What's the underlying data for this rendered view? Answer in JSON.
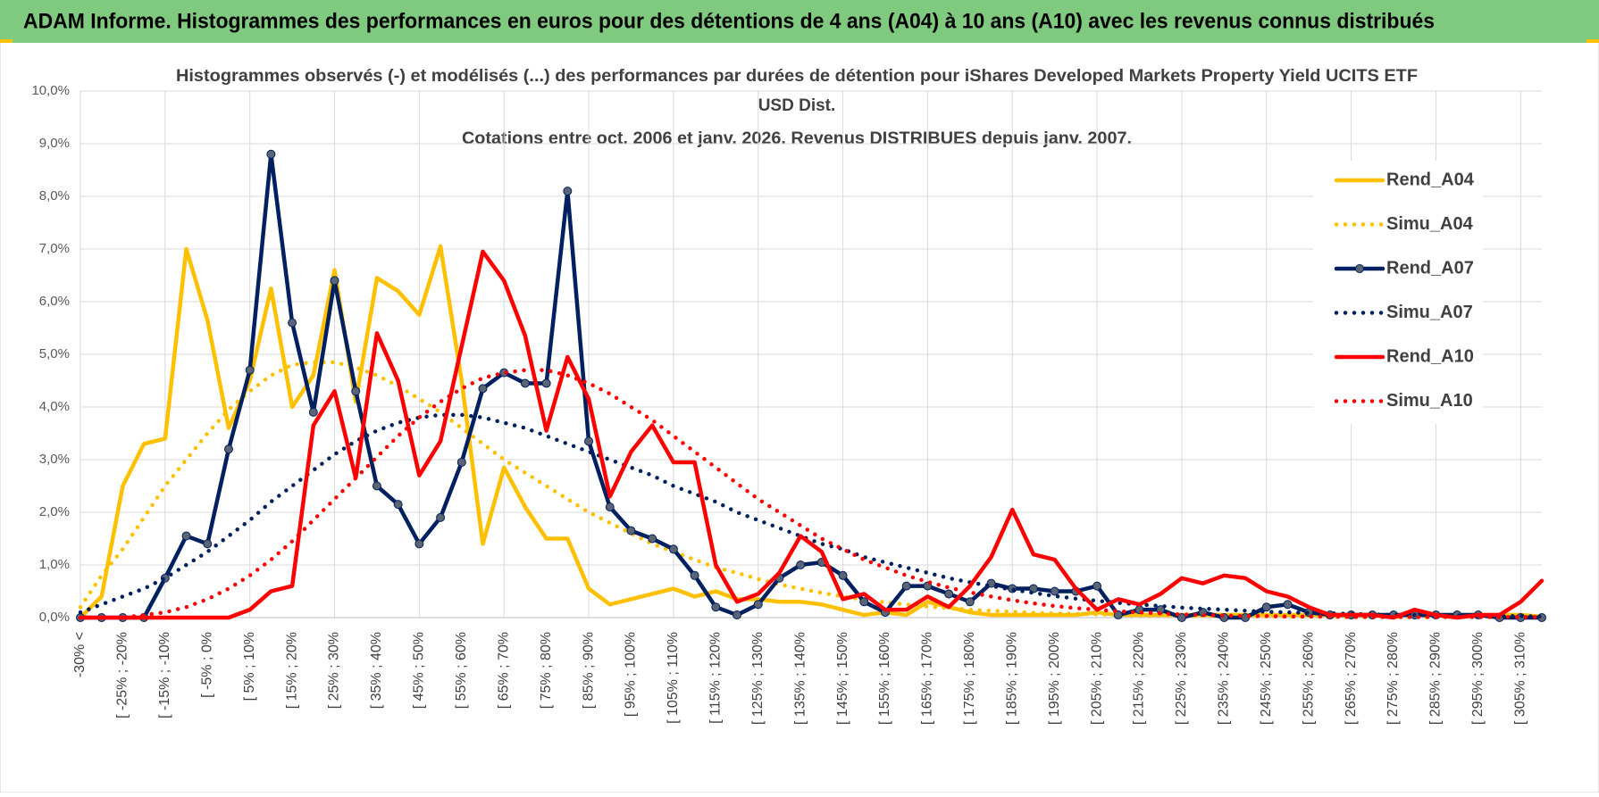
{
  "header": {
    "title": "ADAM Informe. Histogrammes des performances en euros pour des détentions de 4 ans (A04) à 10 ans (A10) avec les revenus connus distribués"
  },
  "chart_data": {
    "type": "line",
    "title": [
      "Histogrammes observés (-) et modélisés (...) des performances par durées de détention pour iShares Developed Markets Property Yield UCITS ETF",
      "USD Dist."
    ],
    "subtitle": "Cotations entre oct. 2006 et janv. 2026.  Revenus DISTRIBUES depuis janv. 2007.",
    "categories": [
      "-30% <",
      null,
      "[ -25% ; -20%",
      null,
      "[ -15% ; -10%",
      null,
      "[ -5% ; 0%",
      null,
      "[ 5% ; 10%",
      null,
      "[ 15% ; 20%",
      null,
      "[ 25% ; 30%",
      null,
      "[ 35% ; 40%",
      null,
      "[ 45% ; 50%",
      null,
      "[ 55% ; 60%",
      null,
      "[ 65% ; 70%",
      null,
      "[ 75% ; 80%",
      null,
      "[ 85% ; 90%",
      null,
      "[ 95% ; 100%",
      null,
      "[ 105% ; 110%",
      null,
      "[ 115% ; 120%",
      null,
      "[ 125% ; 130%",
      null,
      "[ 135% ; 140%",
      null,
      "[ 145% ; 150%",
      null,
      "[ 155% ; 160%",
      null,
      "[ 165% ; 170%",
      null,
      "[ 175% ; 180%",
      null,
      "[ 185% ; 190%",
      null,
      "[ 195% ; 200%",
      null,
      "[ 205% ; 210%",
      null,
      "[ 215% ; 220%",
      null,
      "[ 225% ; 230%",
      null,
      "[ 235% ; 240%",
      null,
      "[ 245% ; 250%",
      null,
      "[ 255% ; 260%",
      null,
      "[ 265% ; 270%",
      null,
      "[ 275% ; 280%",
      null,
      "[ 285% ; 290%",
      null,
      "[ 295% ; 300%",
      null,
      "[ 305% ; 310%",
      null
    ],
    "series": [
      {
        "name": "Rend_A04",
        "color": "#ffc000",
        "style": "solid",
        "marker": false,
        "values": [
          0,
          0.4,
          2.5,
          3.3,
          3.4,
          7.0,
          5.65,
          3.6,
          4.5,
          6.25,
          4.0,
          4.6,
          6.6,
          4.1,
          6.45,
          6.2,
          5.75,
          7.05,
          4.5,
          1.4,
          2.85,
          2.1,
          1.5,
          1.5,
          0.55,
          0.25,
          0.35,
          0.45,
          0.55,
          0.4,
          0.5,
          0.35,
          0.35,
          0.3,
          0.3,
          0.25,
          0.15,
          0.05,
          0.1,
          0.05,
          0.3,
          0.2,
          0.1,
          0.05,
          0.05,
          0.05,
          0.05,
          0.05,
          0.1,
          0.05,
          0.05,
          0.05,
          0.05,
          0.05,
          0.05,
          0.05,
          0.05,
          0.05,
          0.05,
          0.05,
          0.05,
          0.05,
          0.05,
          0.05,
          0.05,
          0.05,
          0.05,
          0.05,
          0.05,
          0.02
        ]
      },
      {
        "name": "Simu_A04",
        "color": "#ffc000",
        "style": "dotted",
        "marker": false,
        "values": [
          0.2,
          0.8,
          1.3,
          1.9,
          2.5,
          3.0,
          3.5,
          3.95,
          4.3,
          4.6,
          4.8,
          4.85,
          4.85,
          4.75,
          4.6,
          4.4,
          4.15,
          3.9,
          3.6,
          3.3,
          3.0,
          2.75,
          2.5,
          2.25,
          2.0,
          1.8,
          1.6,
          1.4,
          1.25,
          1.1,
          0.95,
          0.85,
          0.73,
          0.63,
          0.55,
          0.47,
          0.4,
          0.34,
          0.29,
          0.25,
          0.21,
          0.18,
          0.15,
          0.13,
          0.11,
          0.09,
          0.08,
          0.07,
          0.06,
          0.05,
          0.04,
          0.04,
          0.03,
          0.03,
          0.03,
          0.02,
          0.02,
          0.02,
          0.02,
          0.01,
          0.01,
          0.01,
          0.01,
          0.01,
          0.01,
          0.01,
          0.01,
          0.01,
          0.01,
          0.01
        ]
      },
      {
        "name": "Rend_A07",
        "color": "#002060",
        "style": "solid",
        "marker": true,
        "values": [
          0,
          0,
          0,
          0,
          0.75,
          1.55,
          1.4,
          3.2,
          4.7,
          8.8,
          5.6,
          3.9,
          6.4,
          4.3,
          2.5,
          2.15,
          1.4,
          1.9,
          2.95,
          4.35,
          4.65,
          4.45,
          4.45,
          8.1,
          3.35,
          2.1,
          1.65,
          1.5,
          1.3,
          0.8,
          0.2,
          0.05,
          0.25,
          0.75,
          1.0,
          1.05,
          0.8,
          0.3,
          0.1,
          0.6,
          0.6,
          0.45,
          0.3,
          0.65,
          0.55,
          0.55,
          0.5,
          0.5,
          0.6,
          0.05,
          0.15,
          0.15,
          0,
          0.1,
          0,
          0,
          0.2,
          0.25,
          0.1,
          0.05,
          0.05,
          0.05,
          0.05,
          0.05,
          0.05,
          0.05,
          0.05,
          0,
          0,
          0
        ]
      },
      {
        "name": "Simu_A07",
        "color": "#002060",
        "style": "dotted",
        "marker": false,
        "values": [
          0.1,
          0.25,
          0.4,
          0.55,
          0.75,
          1.0,
          1.25,
          1.55,
          1.85,
          2.2,
          2.5,
          2.8,
          3.1,
          3.35,
          3.55,
          3.7,
          3.8,
          3.85,
          3.85,
          3.8,
          3.7,
          3.6,
          3.45,
          3.3,
          3.15,
          3.0,
          2.85,
          2.7,
          2.5,
          2.35,
          2.2,
          2.0,
          1.85,
          1.7,
          1.55,
          1.4,
          1.3,
          1.15,
          1.05,
          0.95,
          0.85,
          0.75,
          0.67,
          0.6,
          0.53,
          0.47,
          0.41,
          0.36,
          0.32,
          0.28,
          0.25,
          0.22,
          0.19,
          0.17,
          0.15,
          0.13,
          0.11,
          0.1,
          0.09,
          0.08,
          0.07,
          0.06,
          0.05,
          0.05,
          0.04,
          0.04,
          0.03,
          0.03,
          0.03,
          0.02
        ]
      },
      {
        "name": "Rend_A10",
        "color": "#ff0000",
        "style": "solid",
        "marker": false,
        "values": [
          0,
          0,
          0,
          0,
          0,
          0,
          0,
          0,
          0.15,
          0.5,
          0.6,
          3.65,
          4.3,
          2.65,
          5.4,
          4.5,
          2.7,
          3.35,
          5.15,
          6.95,
          6.4,
          5.35,
          3.55,
          4.95,
          4.15,
          2.3,
          3.15,
          3.65,
          2.95,
          2.95,
          1.0,
          0.3,
          0.45,
          0.85,
          1.55,
          1.25,
          0.35,
          0.45,
          0.15,
          0.15,
          0.4,
          0.2,
          0.6,
          1.15,
          2.05,
          1.2,
          1.1,
          0.55,
          0.15,
          0.35,
          0.25,
          0.45,
          0.75,
          0.65,
          0.8,
          0.75,
          0.5,
          0.4,
          0.2,
          0.05,
          0.05,
          0.05,
          0,
          0.15,
          0.05,
          0,
          0.05,
          0.05,
          0.3,
          0.7
        ]
      },
      {
        "name": "Simu_A10",
        "color": "#ff0000",
        "style": "dotted",
        "marker": false,
        "values": [
          0,
          0,
          0,
          0.05,
          0.1,
          0.2,
          0.35,
          0.55,
          0.8,
          1.1,
          1.45,
          1.85,
          2.25,
          2.65,
          3.05,
          3.45,
          3.8,
          4.1,
          4.35,
          4.55,
          4.65,
          4.7,
          4.7,
          4.6,
          4.45,
          4.25,
          4.0,
          3.75,
          3.45,
          3.15,
          2.85,
          2.55,
          2.25,
          2.0,
          1.75,
          1.5,
          1.3,
          1.1,
          0.95,
          0.8,
          0.68,
          0.57,
          0.48,
          0.4,
          0.33,
          0.27,
          0.22,
          0.18,
          0.15,
          0.12,
          0.1,
          0.08,
          0.06,
          0.05,
          0.04,
          0.03,
          0.03,
          0.02,
          0.02,
          0.02,
          0.01,
          0.01,
          0.01,
          0.01,
          0.01,
          0.01,
          0.01,
          0.01,
          0.01,
          0.01
        ]
      }
    ],
    "ylim": [
      0,
      10
    ],
    "yticks": [
      {
        "value": 0,
        "label": "0,0%"
      },
      {
        "value": 1,
        "label": "1,0%"
      },
      {
        "value": 2,
        "label": "2,0%"
      },
      {
        "value": 3,
        "label": "3,0%"
      },
      {
        "value": 4,
        "label": "4,0%"
      },
      {
        "value": 5,
        "label": "5,0%"
      },
      {
        "value": 6,
        "label": "6,0%"
      },
      {
        "value": 7,
        "label": "7,0%"
      },
      {
        "value": 8,
        "label": "8,0%"
      },
      {
        "value": 9,
        "label": "9,0%"
      },
      {
        "value": 10,
        "label": "10,0%"
      }
    ],
    "grid": true,
    "legend": "upper right"
  }
}
